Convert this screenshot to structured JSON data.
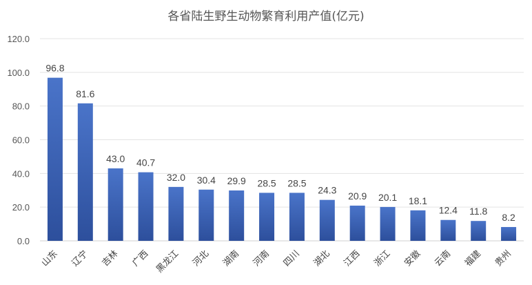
{
  "chart_data": {
    "type": "bar",
    "title": "各省陆生野生动物繁育利用产值(亿元)",
    "xlabel": "",
    "ylabel": "",
    "ylim": [
      0,
      120
    ],
    "yticks": [
      "0.0",
      "20.0",
      "40.0",
      "60.0",
      "80.0",
      "100.0",
      "120.0"
    ],
    "grid": true,
    "legend": "none",
    "categories": [
      "山东",
      "辽宁",
      "吉林",
      "广西",
      "黑龙江",
      "河北",
      "湖南",
      "河南",
      "四川",
      "湖北",
      "江西",
      "浙江",
      "安徽",
      "云南",
      "福建",
      "贵州"
    ],
    "values": [
      96.8,
      81.6,
      43.0,
      40.7,
      32.0,
      30.4,
      29.9,
      28.5,
      28.5,
      24.3,
      20.9,
      20.1,
      18.1,
      12.4,
      11.8,
      8.2
    ],
    "value_labels": [
      "96.8",
      "81.6",
      "43.0",
      "40.7",
      "32.0",
      "30.4",
      "29.9",
      "28.5",
      "28.5",
      "24.3",
      "20.9",
      "20.1",
      "18.1",
      "12.4",
      "11.8",
      "8.2"
    ],
    "bar_color_top": "#4a74c9",
    "bar_color_bottom": "#2d4f9c"
  }
}
